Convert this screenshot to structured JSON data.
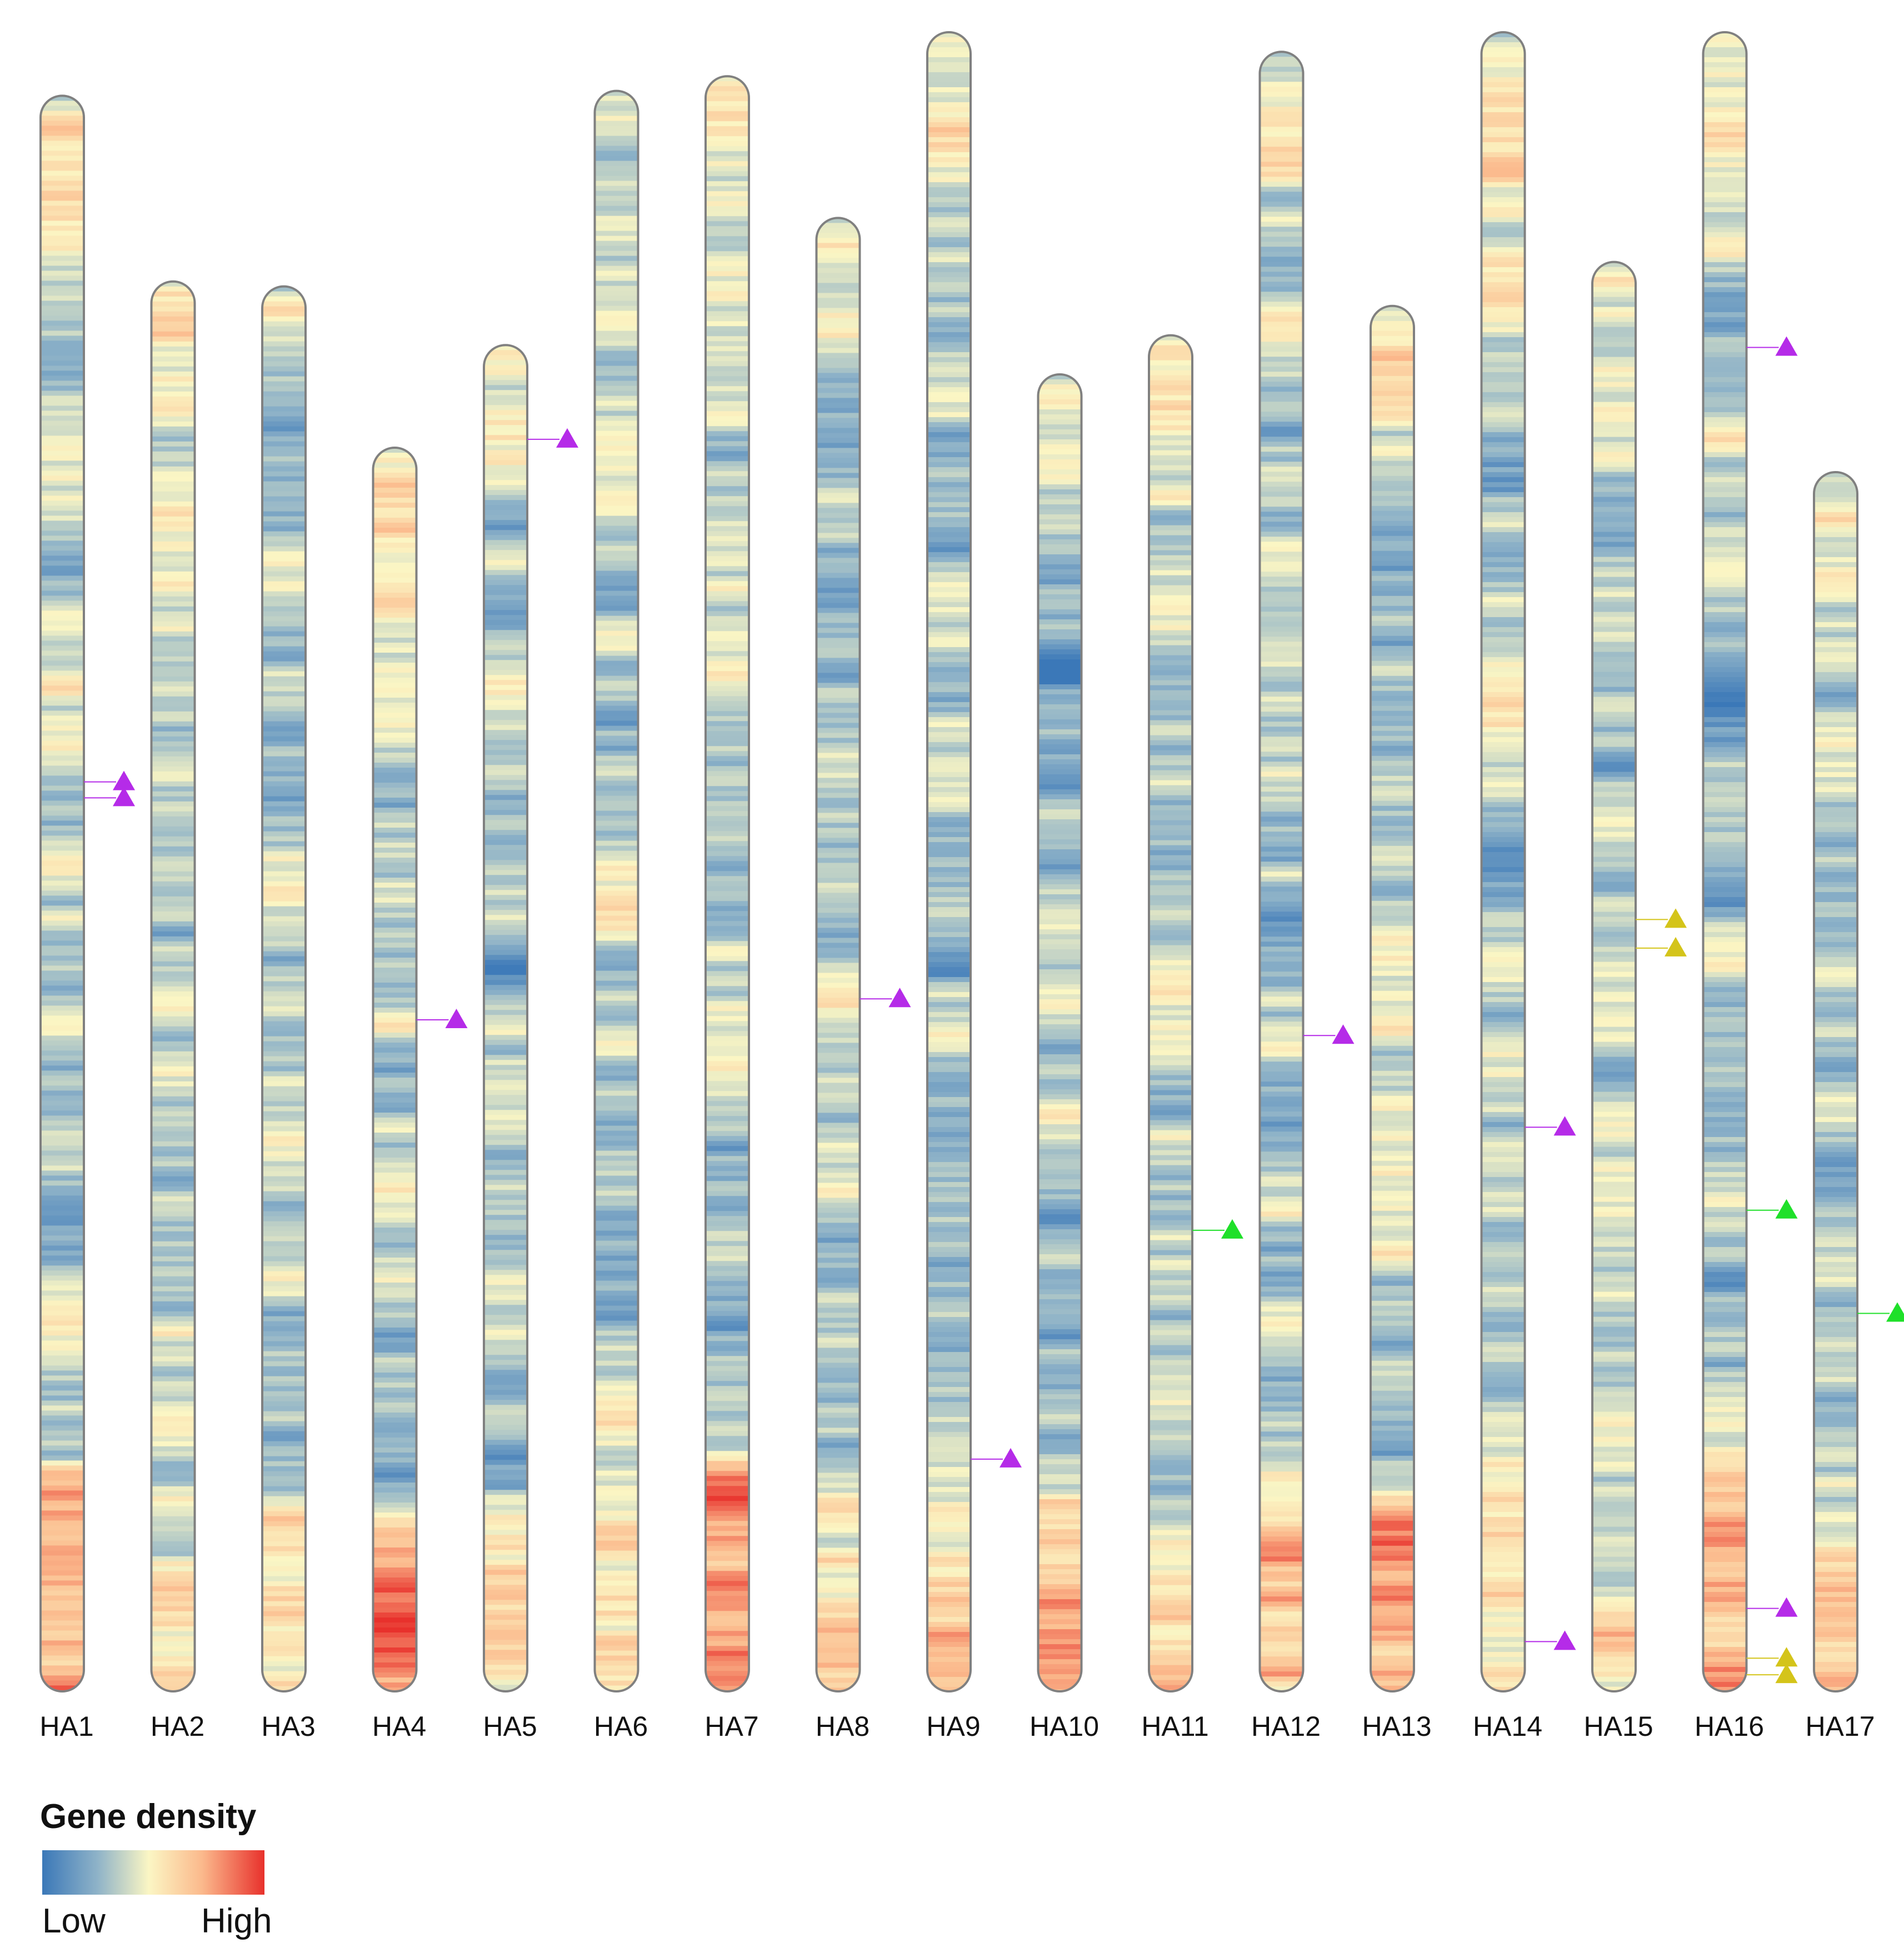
{
  "figure": {
    "chromosomes": [
      {
        "name": "HA1",
        "start": 0.13,
        "markers": [
          {
            "pos": 0.43,
            "color": "purple"
          },
          {
            "pos": 0.44,
            "color": "purple"
          }
        ]
      },
      {
        "name": "HA2",
        "start": 0.51,
        "markers": []
      },
      {
        "name": "HA3",
        "start": 0.52,
        "markers": []
      },
      {
        "name": "HA4",
        "start": 0.85,
        "markers": [
          {
            "pos": 0.46,
            "color": "purple"
          }
        ]
      },
      {
        "name": "HA5",
        "start": 0.64,
        "markers": [
          {
            "pos": 0.07,
            "color": "purple"
          }
        ]
      },
      {
        "name": "HA6",
        "start": 0.12,
        "markers": []
      },
      {
        "name": "HA7",
        "start": 0.09,
        "markers": []
      },
      {
        "name": "HA8",
        "start": 0.38,
        "markers": [
          {
            "pos": 0.53,
            "color": "purple"
          }
        ]
      },
      {
        "name": "HA9",
        "start": 0.0,
        "markers": [
          {
            "pos": 0.86,
            "color": "purple"
          }
        ]
      },
      {
        "name": "HA10",
        "start": 0.7,
        "markers": []
      },
      {
        "name": "HA11",
        "start": 0.62,
        "markers": [
          {
            "pos": 0.66,
            "color": "green"
          }
        ]
      },
      {
        "name": "HA12",
        "start": 0.04,
        "markers": [
          {
            "pos": 0.6,
            "color": "purple"
          }
        ]
      },
      {
        "name": "HA13",
        "start": 0.56,
        "markers": []
      },
      {
        "name": "HA14",
        "start": 0.0,
        "markers": [
          {
            "pos": 0.66,
            "color": "purple"
          },
          {
            "pos": 0.97,
            "color": "purple"
          }
        ]
      },
      {
        "name": "HA15",
        "start": 0.47,
        "markers": [
          {
            "pos": 0.46,
            "color": "yellow"
          },
          {
            "pos": 0.48,
            "color": "yellow"
          }
        ]
      },
      {
        "name": "HA16",
        "start": 0.0,
        "markers": [
          {
            "pos": 0.19,
            "color": "purple"
          },
          {
            "pos": 0.71,
            "color": "green"
          },
          {
            "pos": 0.95,
            "color": "purple"
          },
          {
            "pos": 0.98,
            "color": "yellow"
          },
          {
            "pos": 0.99,
            "color": "yellow"
          }
        ]
      },
      {
        "name": "HA17",
        "start": 0.9,
        "markers": [
          {
            "pos": 0.69,
            "color": "green"
          }
        ]
      }
    ],
    "marker_colors": {
      "purple": "#b52be8",
      "green": "#1fe02a",
      "yellow": "#d4c41a"
    },
    "density_colors": {
      "low": "#3b78b8",
      "mid": "#fbf6c4",
      "high": "#e8312c"
    }
  },
  "legend": {
    "title": "Gene density",
    "low_label": "Low",
    "high_label": "High"
  }
}
